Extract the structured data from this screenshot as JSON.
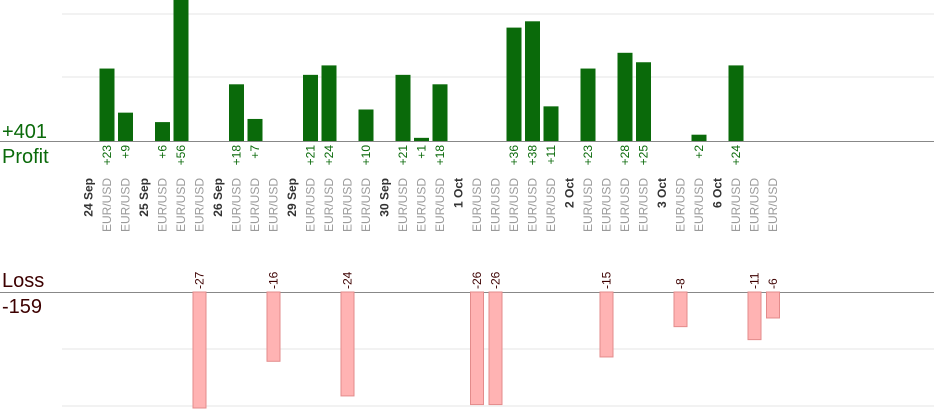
{
  "chart_data": {
    "type": "bar",
    "profit_total_label": "+401",
    "profit_label": "Profit",
    "loss_label": "Loss",
    "loss_total_label": "-159",
    "ylim_profit": [
      0,
      40
    ],
    "ylim_loss": [
      -30,
      0
    ],
    "colors": {
      "profit": "#0a6a0a",
      "profit_text": "#0a6a0a",
      "loss_fill": "#ffb3b3",
      "loss_stroke": "#e38b8b",
      "loss_text": "#3d0000",
      "axis": "#888888",
      "grid": "#e6e6e6"
    },
    "dates": [
      "24 Sep",
      "25 Sep",
      "26 Sep",
      "29 Sep",
      "30 Sep",
      "1 Oct",
      "2 Oct",
      "3 Oct",
      "6 Oct"
    ],
    "trades": [
      {
        "date": "24 Sep",
        "pair": "EUR/USD",
        "value": 23,
        "label": "+23"
      },
      {
        "date": "24 Sep",
        "pair": "EUR/USD",
        "value": 9,
        "label": "+9"
      },
      {
        "date": "25 Sep",
        "pair": "EUR/USD",
        "value": 6,
        "label": "+6"
      },
      {
        "date": "25 Sep",
        "pair": "EUR/USD",
        "value": 56,
        "label": "+56"
      },
      {
        "date": "25 Sep",
        "pair": "EUR/USD",
        "value": -27,
        "label": "-27"
      },
      {
        "date": "26 Sep",
        "pair": "EUR/USD",
        "value": 18,
        "label": "+18"
      },
      {
        "date": "26 Sep",
        "pair": "EUR/USD",
        "value": 7,
        "label": "+7"
      },
      {
        "date": "26 Sep",
        "pair": "EUR/USD",
        "value": -16,
        "label": "-16"
      },
      {
        "date": "29 Sep",
        "pair": "EUR/USD",
        "value": 21,
        "label": "+21"
      },
      {
        "date": "29 Sep",
        "pair": "EUR/USD",
        "value": 24,
        "label": "+24"
      },
      {
        "date": "29 Sep",
        "pair": "EUR/USD",
        "value": -24,
        "label": "-24"
      },
      {
        "date": "29 Sep",
        "pair": "EUR/USD",
        "value": 10,
        "label": "+10"
      },
      {
        "date": "30 Sep",
        "pair": "EUR/USD",
        "value": 21,
        "label": "+21"
      },
      {
        "date": "30 Sep",
        "pair": "EUR/USD",
        "value": 1,
        "label": "+1"
      },
      {
        "date": "30 Sep",
        "pair": "EUR/USD",
        "value": 18,
        "label": "+18"
      },
      {
        "date": "1 Oct",
        "pair": "EUR/USD",
        "value": -26,
        "label": "-26"
      },
      {
        "date": "1 Oct",
        "pair": "EUR/USD",
        "value": -26,
        "label": "-26"
      },
      {
        "date": "1 Oct",
        "pair": "EUR/USD",
        "value": 36,
        "label": "+36"
      },
      {
        "date": "1 Oct",
        "pair": "EUR/USD",
        "value": 38,
        "label": "+38"
      },
      {
        "date": "1 Oct",
        "pair": "EUR/USD",
        "value": 11,
        "label": "+11"
      },
      {
        "date": "2 Oct",
        "pair": "EUR/USD",
        "value": 23,
        "label": "+23"
      },
      {
        "date": "2 Oct",
        "pair": "EUR/USD",
        "value": -15,
        "label": "-15"
      },
      {
        "date": "2 Oct",
        "pair": "EUR/USD",
        "value": 28,
        "label": "+28"
      },
      {
        "date": "2 Oct",
        "pair": "EUR/USD",
        "value": 25,
        "label": "+25"
      },
      {
        "date": "3 Oct",
        "pair": "EUR/USD",
        "value": -8,
        "label": "-8"
      },
      {
        "date": "3 Oct",
        "pair": "EUR/USD",
        "value": 2,
        "label": "+2"
      },
      {
        "date": "6 Oct",
        "pair": "EUR/USD",
        "value": 24,
        "label": "+24"
      },
      {
        "date": "6 Oct",
        "pair": "EUR/USD",
        "value": -11,
        "label": "-11"
      },
      {
        "date": "6 Oct",
        "pair": "EUR/USD",
        "value": -6,
        "label": "-6"
      }
    ]
  }
}
